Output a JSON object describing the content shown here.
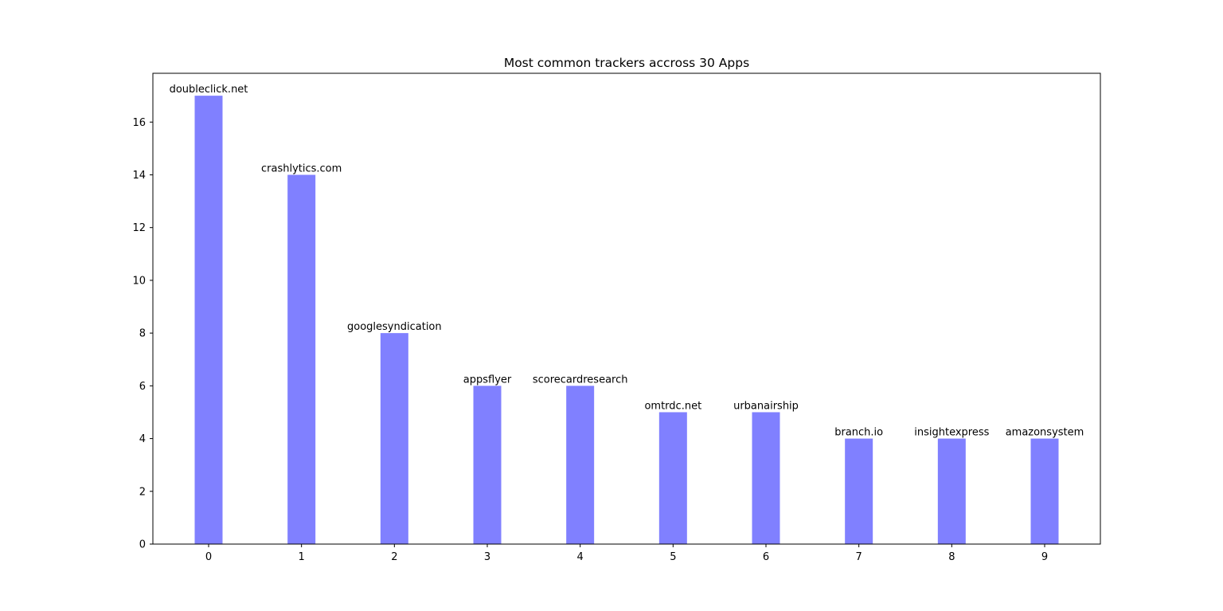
{
  "chart_data": {
    "type": "bar",
    "title": "Most common trackers accross 30 Apps",
    "xlabel": "",
    "ylabel": "",
    "categories": [
      "0",
      "1",
      "2",
      "3",
      "4",
      "5",
      "6",
      "7",
      "8",
      "9"
    ],
    "labels": [
      "doubleclick.net",
      "crashlytics.com",
      "googlesyndication",
      "appsflyer",
      "scorecardresearch",
      "omtrdc.net",
      "urbanairship",
      "branch.io",
      "insightexpress",
      "amazonsystem"
    ],
    "values": [
      17,
      14,
      8,
      6,
      6,
      5,
      5,
      4,
      4,
      4
    ],
    "yticks": [
      0,
      2,
      4,
      6,
      8,
      10,
      12,
      14,
      16
    ],
    "ylim": [
      0,
      17.85
    ],
    "xlim": [
      -0.6,
      9.6
    ],
    "grid": false,
    "legend": "none",
    "colors": {
      "bar": "#8080ff",
      "axis": "#000000"
    }
  }
}
